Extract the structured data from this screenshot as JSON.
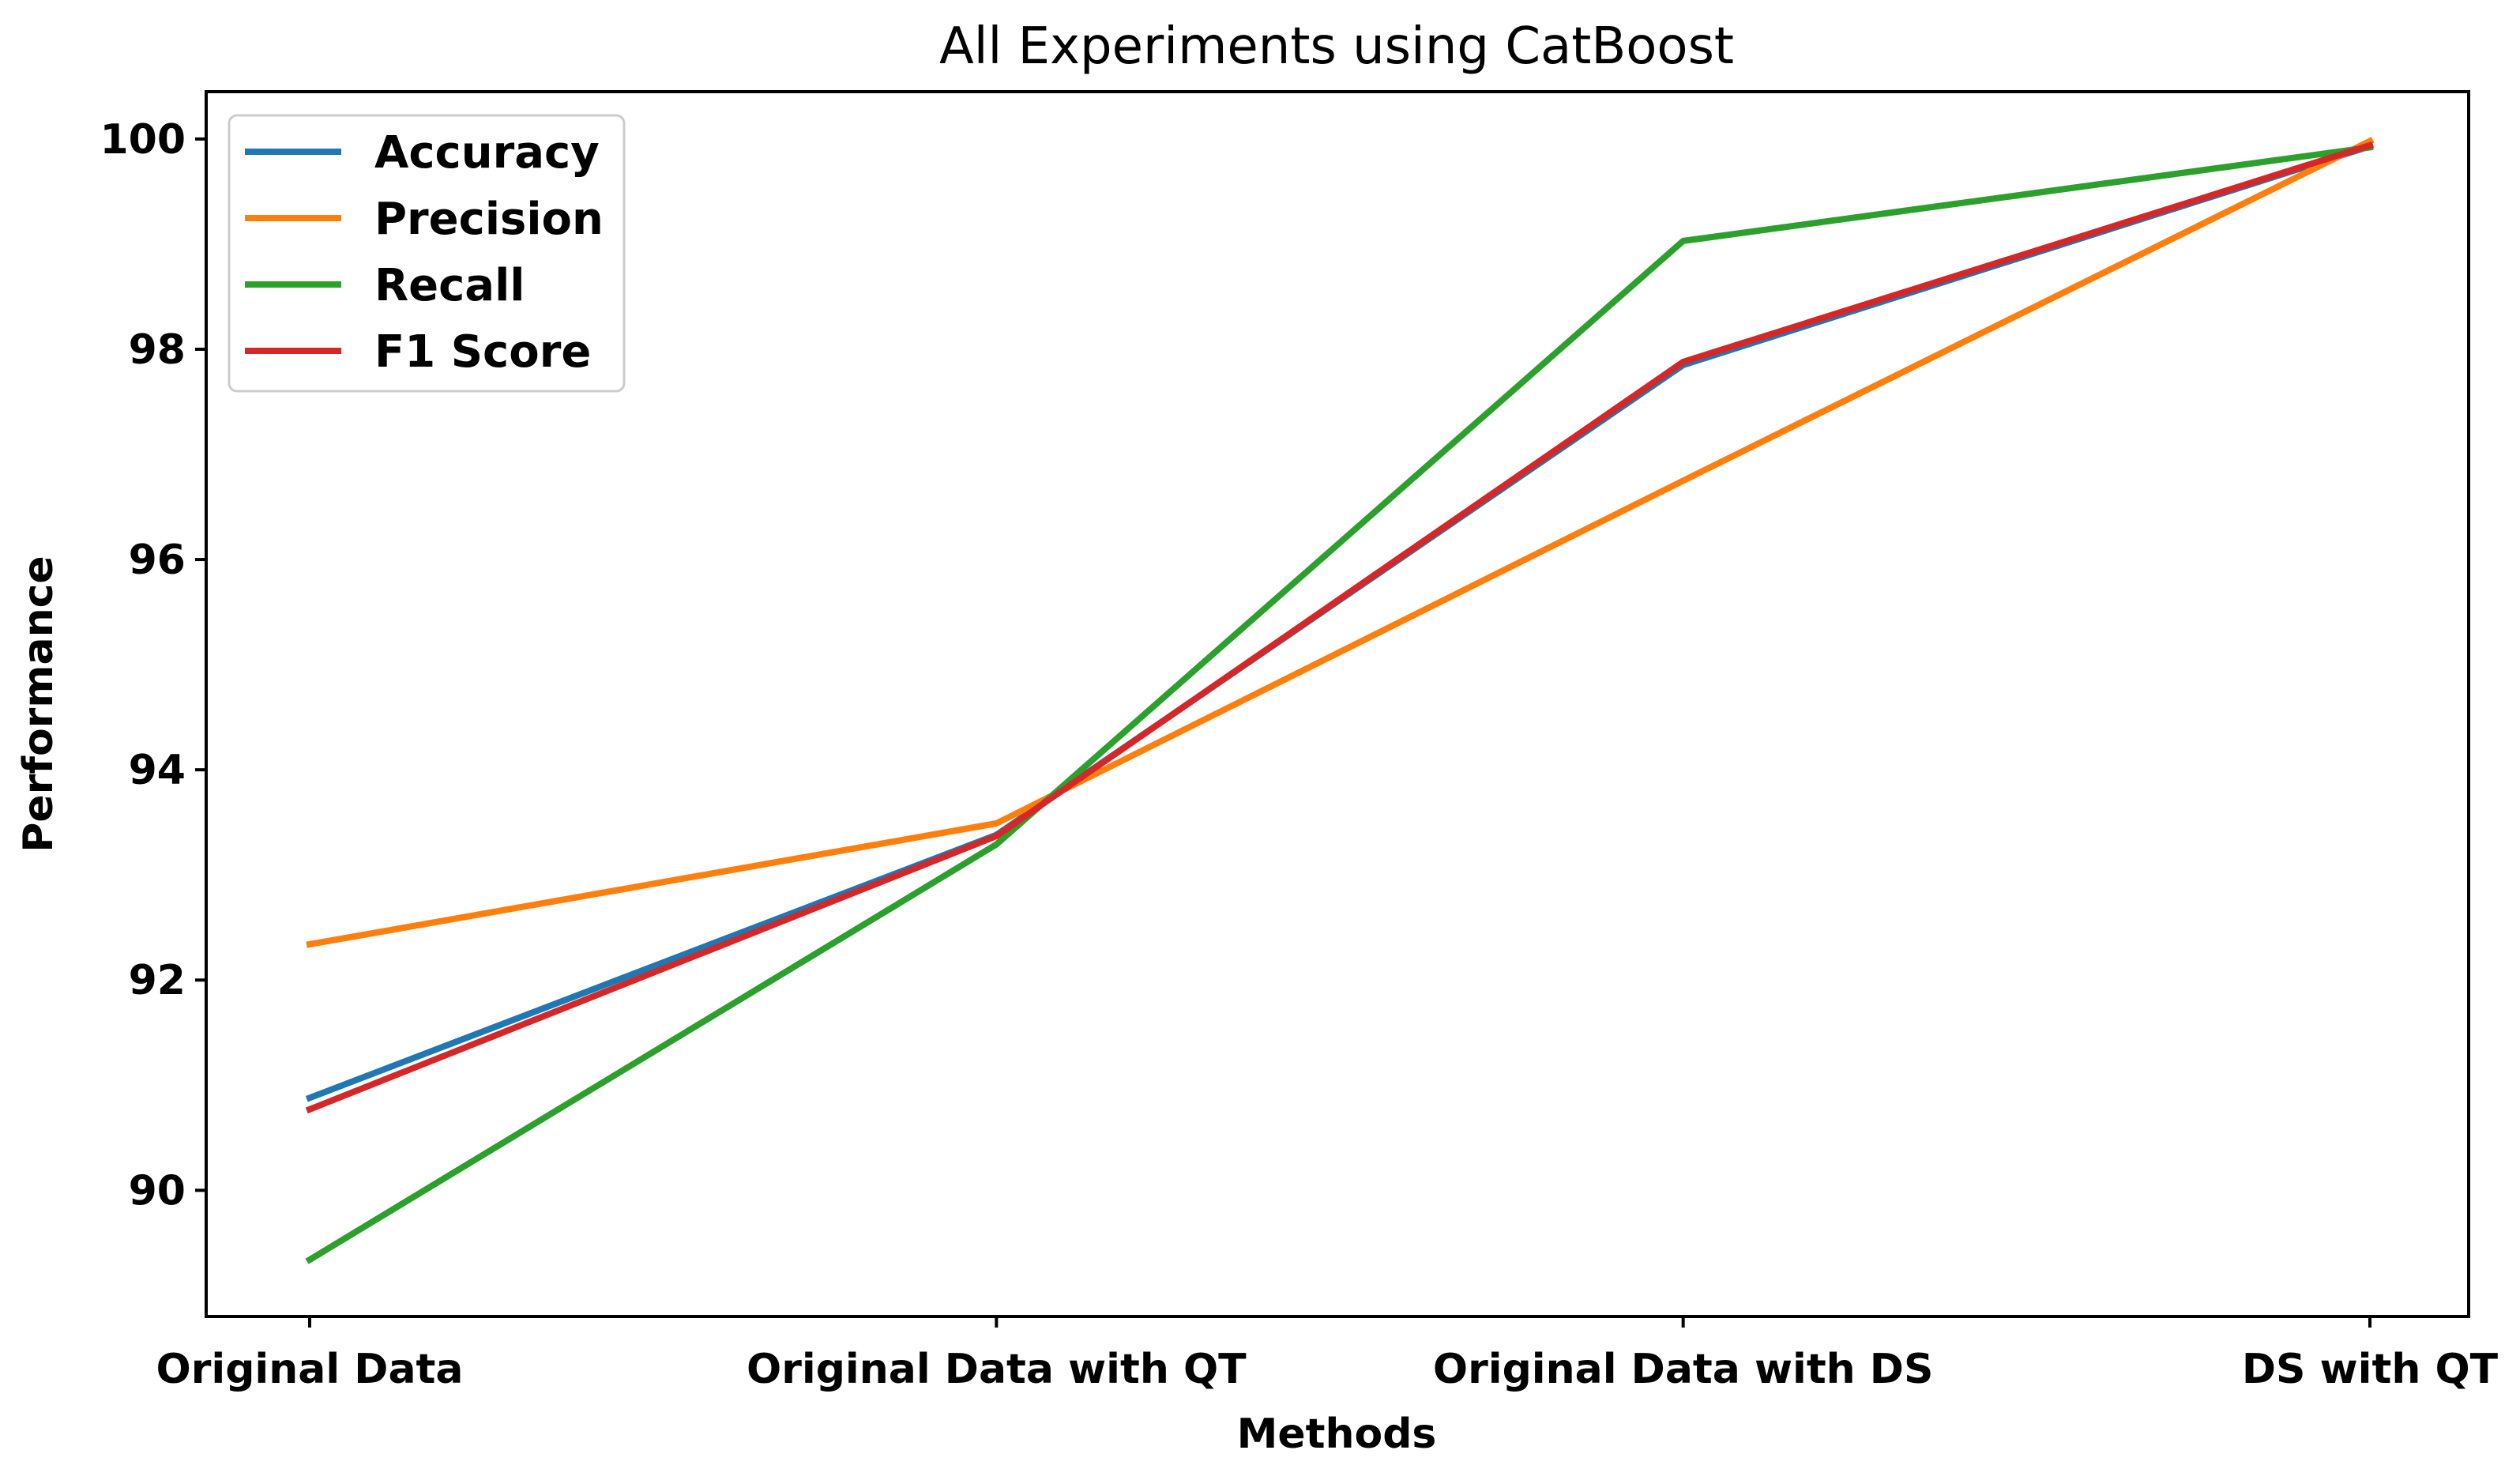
{
  "chart_data": {
    "type": "line",
    "title": "All Experiments using CatBoost",
    "xlabel": "Methods",
    "ylabel": "Performance",
    "categories": [
      "Original Data",
      "Original Data with QT",
      "Original Data with DS",
      "DS with QT"
    ],
    "ylim": [
      88.8,
      100.45
    ],
    "yticks": [
      90,
      92,
      94,
      96,
      98,
      100
    ],
    "legend_position": "upper-left",
    "grid": false,
    "series": [
      {
        "name": "Accuracy",
        "color": "#1f77b4",
        "values": [
          90.88,
          93.38,
          97.85,
          99.93
        ]
      },
      {
        "name": "Precision",
        "color": "#ff7f0e",
        "values": [
          92.34,
          93.49,
          96.75,
          99.98
        ]
      },
      {
        "name": "Recall",
        "color": "#2ca02c",
        "values": [
          89.34,
          93.29,
          99.03,
          99.92
        ]
      },
      {
        "name": "F1 Score",
        "color": "#d62728",
        "values": [
          90.77,
          93.37,
          97.88,
          99.94
        ]
      }
    ]
  }
}
